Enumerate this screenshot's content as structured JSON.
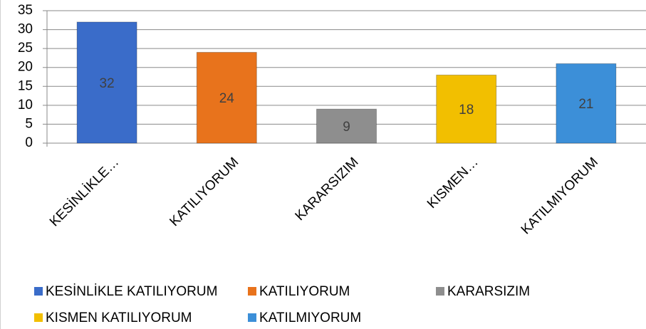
{
  "chart_data": {
    "type": "bar",
    "categories": [
      "KESİNLİKLE…",
      "KATILIYORUM",
      "KARARSIZIM",
      "KISMEN…",
      "KATILMIYORUM"
    ],
    "values": [
      32,
      24,
      9,
      18,
      21
    ],
    "colors": [
      "#3a6cc9",
      "#e8731c",
      "#8e8e8e",
      "#f2bf00",
      "#3c8fd8"
    ],
    "legend": [
      "KESİNLİKLE KATILIYORUM",
      "KATILIYORUM",
      "KARARSIZIM",
      "KISMEN KATILIYORUM",
      "KATILMIYORUM"
    ],
    "ylim": [
      0,
      35
    ],
    "yticks": [
      0,
      5,
      10,
      15,
      20,
      25,
      30,
      35
    ],
    "grid": true
  }
}
